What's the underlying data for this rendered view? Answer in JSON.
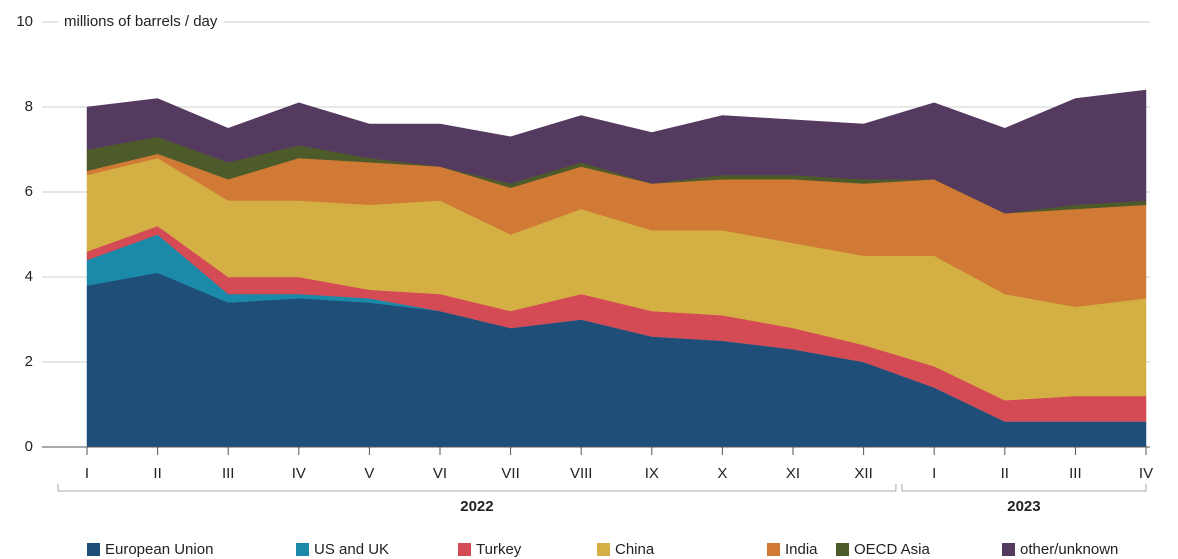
{
  "chart_data": {
    "type": "stacked_area",
    "y_axis_label": "millions of barrels / day",
    "groups": [
      {
        "label": "2022",
        "categories": [
          "I",
          "II",
          "III",
          "IV",
          "V",
          "VI",
          "VII",
          "VIII",
          "IX",
          "X",
          "XI",
          "XII"
        ]
      },
      {
        "label": "2023",
        "categories": [
          "I",
          "II",
          "III",
          "IV"
        ]
      }
    ],
    "ylim": [
      0,
      10
    ],
    "yticks": [
      0,
      2,
      4,
      6,
      8,
      10
    ],
    "grid": true,
    "legend": "bottom",
    "series": [
      {
        "name": "European Union",
        "color": "#1f4e79",
        "values": [
          3.8,
          4.1,
          3.4,
          3.5,
          3.4,
          3.2,
          2.8,
          3.0,
          2.6,
          2.5,
          2.3,
          2.0,
          1.4,
          0.6,
          0.6,
          0.6
        ]
      },
      {
        "name": "US and UK",
        "color": "#1a8aa8",
        "values": [
          0.6,
          0.9,
          0.2,
          0.1,
          0.1,
          0,
          0,
          0,
          0,
          0,
          0,
          0,
          0,
          0,
          0,
          0
        ]
      },
      {
        "name": "Turkey",
        "color": "#d44a55",
        "values": [
          0.2,
          0.2,
          0.4,
          0.4,
          0.2,
          0.4,
          0.4,
          0.6,
          0.6,
          0.6,
          0.5,
          0.4,
          0.5,
          0.5,
          0.6,
          0.6
        ]
      },
      {
        "name": "China",
        "color": "#d4b044",
        "values": [
          1.8,
          1.6,
          1.8,
          1.8,
          2.0,
          2.2,
          1.8,
          2.0,
          1.9,
          2.0,
          2.0,
          2.1,
          2.6,
          2.5,
          2.1,
          2.3
        ]
      },
      {
        "name": "India",
        "color": "#d07a35",
        "values": [
          0.1,
          0.1,
          0.5,
          1.0,
          1.0,
          0.8,
          1.1,
          1.0,
          1.1,
          1.2,
          1.5,
          1.7,
          1.8,
          1.9,
          2.3,
          2.2
        ]
      },
      {
        "name": "OECD Asia",
        "color": "#4d5a2a",
        "values": [
          0.5,
          0.4,
          0.4,
          0.3,
          0.1,
          0,
          0.1,
          0.1,
          0,
          0.1,
          0.1,
          0.1,
          0,
          0,
          0.1,
          0.1
        ]
      },
      {
        "name": "other/unknown",
        "color": "#553a60",
        "values": [
          1.0,
          0.9,
          0.8,
          1.0,
          0.8,
          1.0,
          1.1,
          1.1,
          1.2,
          1.4,
          1.3,
          1.3,
          1.8,
          2.0,
          2.5,
          2.6
        ]
      }
    ]
  }
}
